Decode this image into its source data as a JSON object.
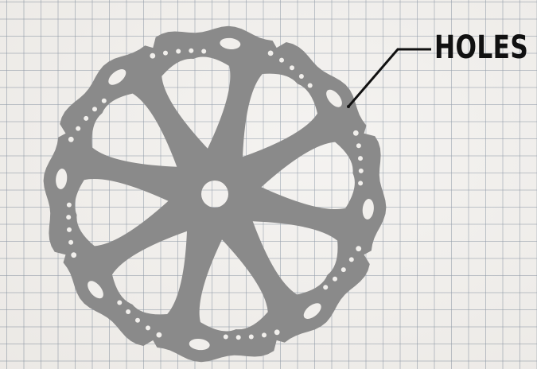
{
  "diagram": {
    "subject": "disc-brake-rotor",
    "callout": {
      "label": "HOLES"
    },
    "colors": {
      "paper": "#f1efec",
      "grid_line": "#7684a0",
      "rotor": "#8a8a8a",
      "leader_line": "#111111",
      "label_text": "#111111"
    }
  }
}
